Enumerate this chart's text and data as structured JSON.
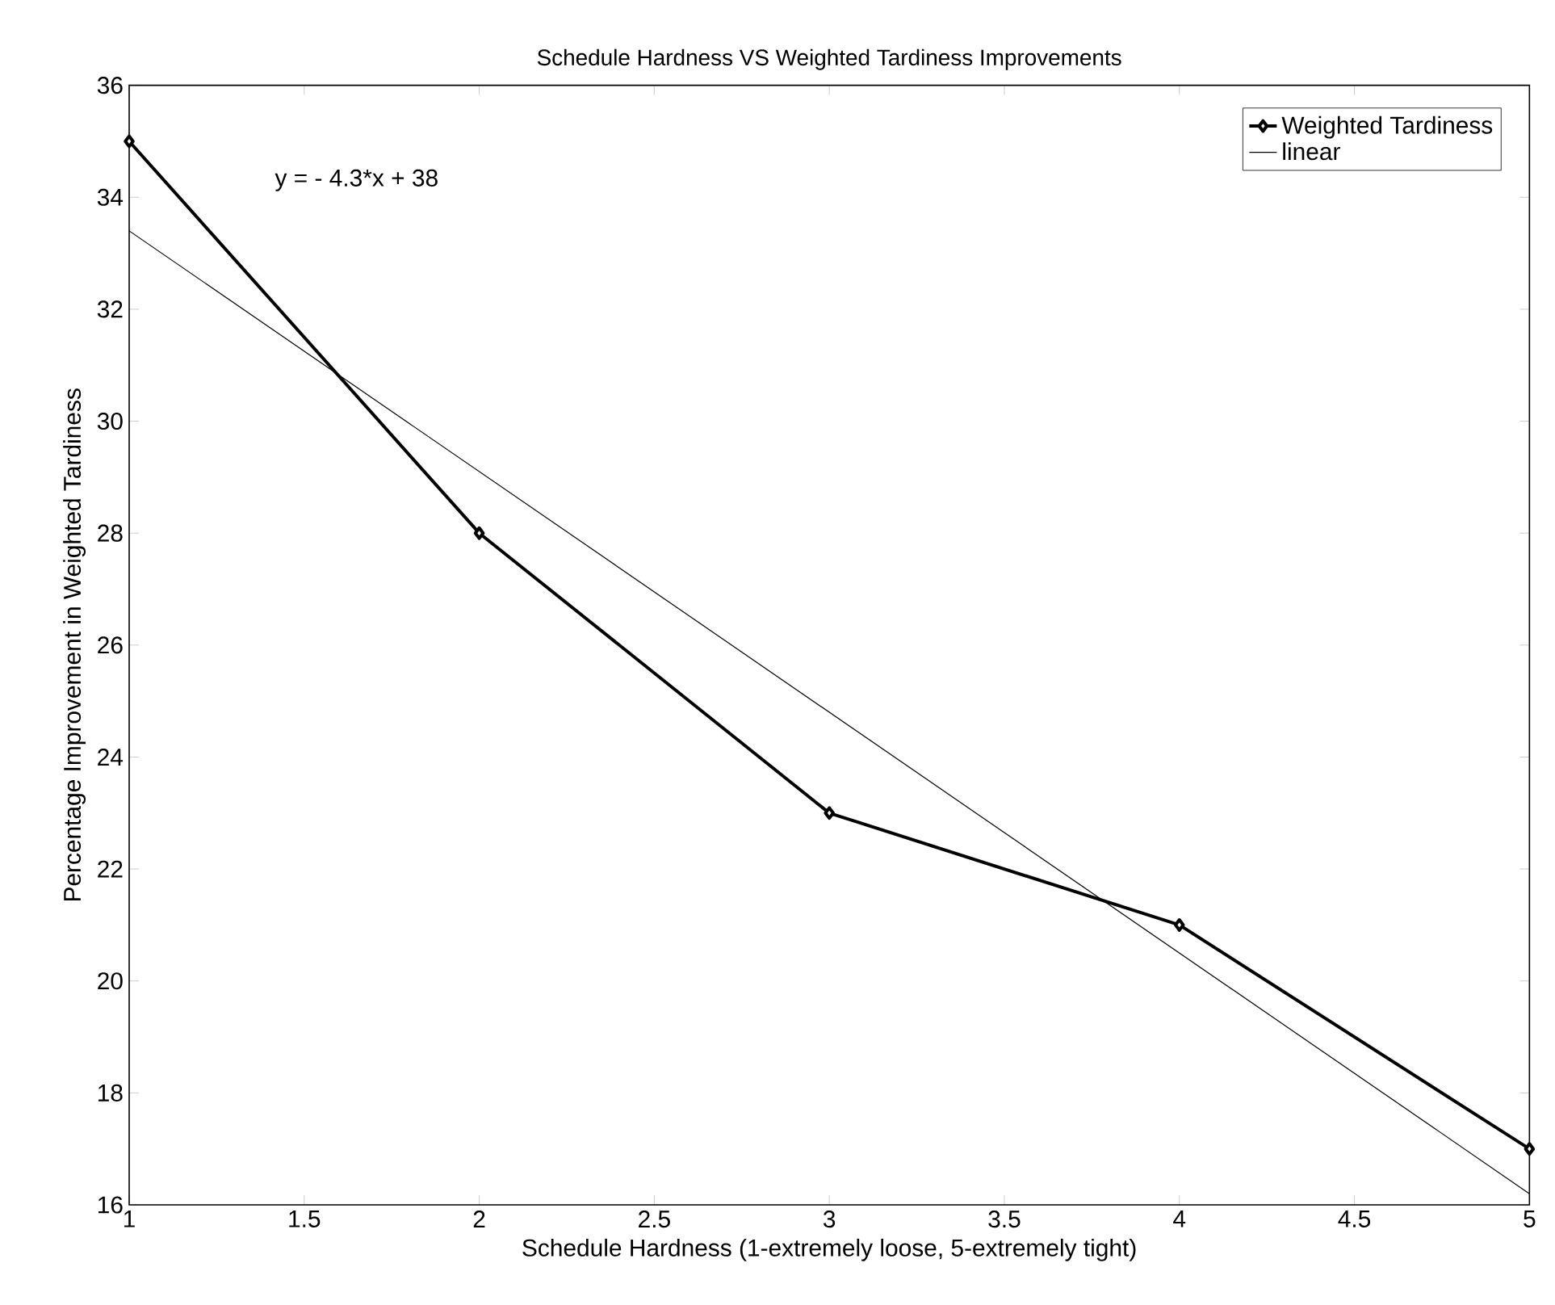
{
  "chart_data": {
    "type": "line",
    "title": "Schedule Hardness VS Weighted Tardiness Improvements",
    "xlabel": "Schedule Hardness (1-extremely loose, 5-extremely tight)",
    "ylabel": "Percentage Improvement in Weighted Tardiness",
    "x": [
      1,
      2,
      3,
      4,
      5
    ],
    "series": [
      {
        "name": "Weighted Tardiness",
        "color": "#000000",
        "values": [
          35,
          28,
          23,
          21,
          17
        ],
        "marker": "diamond"
      },
      {
        "name": "linear",
        "color": "#000000",
        "x": [
          1,
          5
        ],
        "values": [
          33.4,
          16.2
        ],
        "marker": "none"
      }
    ],
    "annotations": [
      "y = - 4.3*x + 38"
    ],
    "xlim": [
      1,
      5
    ],
    "ylim": [
      16,
      36
    ],
    "xticks": [
      1,
      1.5,
      2,
      2.5,
      3,
      3.5,
      4,
      4.5,
      5
    ],
    "yticks": [
      16,
      18,
      20,
      22,
      24,
      26,
      28,
      30,
      32,
      34,
      36
    ],
    "grid": false,
    "legend": "top right"
  }
}
